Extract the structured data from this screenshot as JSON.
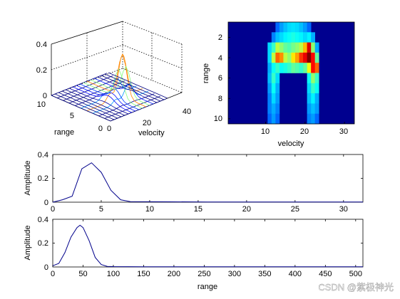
{
  "watermark": "CSDN @紫极神光",
  "chart_data": [
    {
      "type": "surface",
      "xlabel": "velocity",
      "ylabel": "range",
      "zlim": [
        0,
        0.4
      ],
      "xlim": [
        0,
        40
      ],
      "ylim": [
        0,
        10
      ],
      "x_ticks": [
        "20",
        "40"
      ],
      "y_ticks": [
        "0",
        "5",
        "10"
      ],
      "z_ticks": [
        "0",
        "0.2",
        "0.4"
      ],
      "grid": true,
      "colormap": "jet",
      "peak": {
        "velocity": 20,
        "range": 4,
        "value": 0.33
      }
    },
    {
      "type": "heatmap",
      "xlabel": "velocity",
      "ylabel": "range",
      "xlim": [
        0.5,
        32.5
      ],
      "ylim": [
        0.5,
        10.5
      ],
      "x_ticks": [
        "10",
        "20",
        "30"
      ],
      "y_ticks": [
        "2",
        "4",
        "6",
        "8",
        "10"
      ],
      "colormap": "jet",
      "max_value": 0.33,
      "cells": [
        [
          13,
          1,
          0.12
        ],
        [
          14,
          1,
          0.18
        ],
        [
          15,
          1,
          0.22
        ],
        [
          16,
          1,
          0.25
        ],
        [
          17,
          1,
          0.26
        ],
        [
          18,
          1,
          0.25
        ],
        [
          19,
          1,
          0.22
        ],
        [
          20,
          1,
          0.18
        ],
        [
          21,
          1,
          0.12
        ],
        [
          12,
          2,
          0.15
        ],
        [
          13,
          2,
          0.22
        ],
        [
          14,
          2,
          0.25
        ],
        [
          15,
          2,
          0.28
        ],
        [
          16,
          2,
          0.3
        ],
        [
          17,
          2,
          0.32
        ],
        [
          18,
          2,
          0.3
        ],
        [
          19,
          2,
          0.28
        ],
        [
          20,
          2,
          0.25
        ],
        [
          21,
          2,
          0.28
        ],
        [
          22,
          2,
          0.2
        ],
        [
          11,
          3,
          0.25
        ],
        [
          12,
          3,
          0.35
        ],
        [
          13,
          3,
          0.5
        ],
        [
          14,
          3,
          0.45
        ],
        [
          15,
          3,
          0.4
        ],
        [
          16,
          3,
          0.38
        ],
        [
          17,
          3,
          0.42
        ],
        [
          18,
          3,
          0.45
        ],
        [
          19,
          3,
          0.5
        ],
        [
          20,
          3,
          0.65
        ],
        [
          21,
          3,
          0.9
        ],
        [
          22,
          3,
          0.45
        ],
        [
          23,
          3,
          0.2
        ],
        [
          11,
          4,
          0.25
        ],
        [
          12,
          4,
          0.5
        ],
        [
          13,
          4,
          0.75
        ],
        [
          14,
          4,
          0.7
        ],
        [
          15,
          4,
          0.5
        ],
        [
          16,
          4,
          0.45
        ],
        [
          17,
          4,
          0.6
        ],
        [
          18,
          4,
          0.68
        ],
        [
          19,
          4,
          0.8
        ],
        [
          20,
          4,
          0.88
        ],
        [
          21,
          4,
          1.0
        ],
        [
          22,
          4,
          0.85
        ],
        [
          23,
          4,
          0.4
        ],
        [
          11,
          5,
          0.2
        ],
        [
          12,
          5,
          0.3
        ],
        [
          13,
          5,
          0.35
        ],
        [
          14,
          5,
          0.3
        ],
        [
          15,
          5,
          0.32
        ],
        [
          16,
          5,
          0.35
        ],
        [
          17,
          5,
          0.4
        ],
        [
          18,
          5,
          0.38
        ],
        [
          19,
          5,
          0.35
        ],
        [
          20,
          5,
          0.4
        ],
        [
          21,
          5,
          0.55
        ],
        [
          22,
          5,
          0.85
        ],
        [
          23,
          5,
          0.75
        ],
        [
          11,
          6,
          0.22
        ],
        [
          12,
          6,
          0.35
        ],
        [
          13,
          6,
          0.25
        ],
        [
          21,
          6,
          0.3
        ],
        [
          22,
          6,
          0.45
        ],
        [
          23,
          6,
          0.35
        ],
        [
          11,
          7,
          0.18
        ],
        [
          12,
          7,
          0.3
        ],
        [
          13,
          7,
          0.2
        ],
        [
          21,
          7,
          0.25
        ],
        [
          22,
          7,
          0.35
        ],
        [
          23,
          7,
          0.3
        ],
        [
          11,
          8,
          0.15
        ],
        [
          12,
          8,
          0.25
        ],
        [
          13,
          8,
          0.18
        ],
        [
          21,
          8,
          0.22
        ],
        [
          22,
          8,
          0.28
        ],
        [
          23,
          8,
          0.2
        ],
        [
          11,
          9,
          0.15
        ],
        [
          12,
          9,
          0.2
        ],
        [
          13,
          9,
          0.15
        ],
        [
          21,
          9,
          0.18
        ],
        [
          22,
          9,
          0.22
        ],
        [
          23,
          9,
          0.18
        ],
        [
          11,
          10,
          0.12
        ],
        [
          12,
          10,
          0.18
        ],
        [
          13,
          10,
          0.12
        ],
        [
          21,
          10,
          0.15
        ],
        [
          22,
          10,
          0.18
        ],
        [
          23,
          10,
          0.12
        ]
      ]
    },
    {
      "type": "line",
      "xlabel": "",
      "ylabel": "Amplitude",
      "xlim": [
        0,
        32
      ],
      "ylim": [
        0,
        0.4
      ],
      "x_ticks": [
        "0",
        "5",
        "10",
        "15",
        "20",
        "25",
        "30"
      ],
      "y_ticks": [
        "0",
        "0.2",
        "0.4"
      ],
      "x": [
        0,
        1,
        2,
        3,
        4,
        5,
        6,
        7,
        8,
        12,
        16,
        20,
        24,
        28,
        32
      ],
      "y": [
        0,
        0.02,
        0.05,
        0.28,
        0.33,
        0.25,
        0.1,
        0.02,
        0.005,
        0.003,
        0.002,
        0.002,
        0.002,
        0.002,
        0.002
      ]
    },
    {
      "type": "line",
      "xlabel": "range",
      "ylabel": "Amplitude",
      "xlim": [
        0,
        512
      ],
      "ylim": [
        0,
        0.4
      ],
      "x_ticks": [
        "0",
        "50",
        "100",
        "150",
        "200",
        "250",
        "300",
        "350",
        "400",
        "450",
        "500"
      ],
      "y_ticks": [
        "0",
        "0.2",
        "0.4"
      ],
      "x": [
        0,
        10,
        20,
        30,
        40,
        45,
        50,
        60,
        70,
        80,
        90,
        100,
        150,
        200,
        300,
        400,
        512
      ],
      "y": [
        0.01,
        0.03,
        0.12,
        0.25,
        0.33,
        0.35,
        0.33,
        0.22,
        0.08,
        0.02,
        0.005,
        0.003,
        0.002,
        0.002,
        0.002,
        0.002,
        0.002
      ]
    }
  ]
}
